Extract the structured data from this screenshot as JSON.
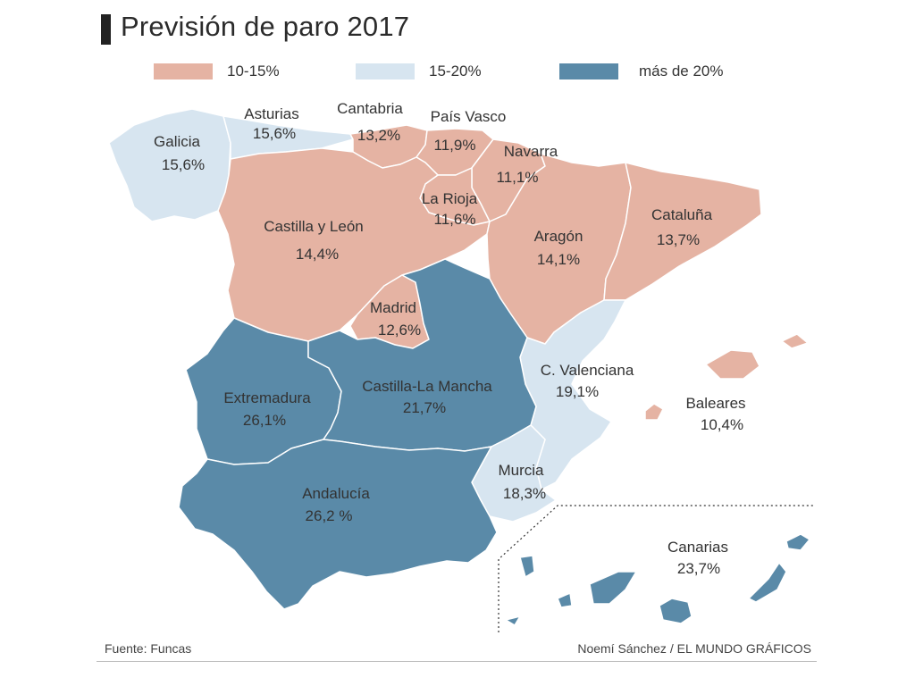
{
  "title": "Previsión de paro 2017",
  "colors": {
    "low": "#e5b3a3",
    "mid": "#d7e5f0",
    "high": "#5a8aa8",
    "title_bar": "#222222",
    "border": "#ffffff"
  },
  "legend": [
    {
      "label": "10-15%",
      "color": "#e5b3a3"
    },
    {
      "label": "15-20%",
      "color": "#d7e5f0"
    },
    {
      "label": "más de 20%",
      "color": "#5a8aa8"
    }
  ],
  "regions": [
    {
      "name": "Galicia",
      "value": "15,6%",
      "band": "15-20%"
    },
    {
      "name": "Asturias",
      "value": "15,6%",
      "band": "15-20%"
    },
    {
      "name": "Cantabria",
      "value": "13,2%",
      "band": "10-15%"
    },
    {
      "name": "País Vasco",
      "value": "11,9%",
      "band": "10-15%"
    },
    {
      "name": "Navarra",
      "value": "11,1%",
      "band": "10-15%"
    },
    {
      "name": "La Rioja",
      "value": "11,6%",
      "band": "10-15%"
    },
    {
      "name": "Castilla y León",
      "value": "14,4%",
      "band": "10-15%"
    },
    {
      "name": "Aragón",
      "value": "14,1%",
      "band": "10-15%"
    },
    {
      "name": "Cataluña",
      "value": "13,7%",
      "band": "10-15%"
    },
    {
      "name": "Madrid",
      "value": "12,6%",
      "band": "10-15%"
    },
    {
      "name": "C. Valenciana",
      "value": "19,1%",
      "band": "15-20%"
    },
    {
      "name": "Baleares",
      "value": "10,4%",
      "band": "10-15%"
    },
    {
      "name": "Extremadura",
      "value": "26,1%",
      "band": "más de 20%"
    },
    {
      "name": "Castilla-La Mancha",
      "value": "21,7%",
      "band": "más de 20%"
    },
    {
      "name": "Murcia",
      "value": "18,3%",
      "band": "15-20%"
    },
    {
      "name": "Andalucía",
      "value": "26,2 %",
      "band": "más de 20%"
    },
    {
      "name": "Canarias",
      "value": "23,7%",
      "band": "más de 20%"
    }
  ],
  "footer": {
    "source": "Fuente: Funcas",
    "credit": "Noemí Sánchez / EL MUNDO GRÁFICOS"
  }
}
